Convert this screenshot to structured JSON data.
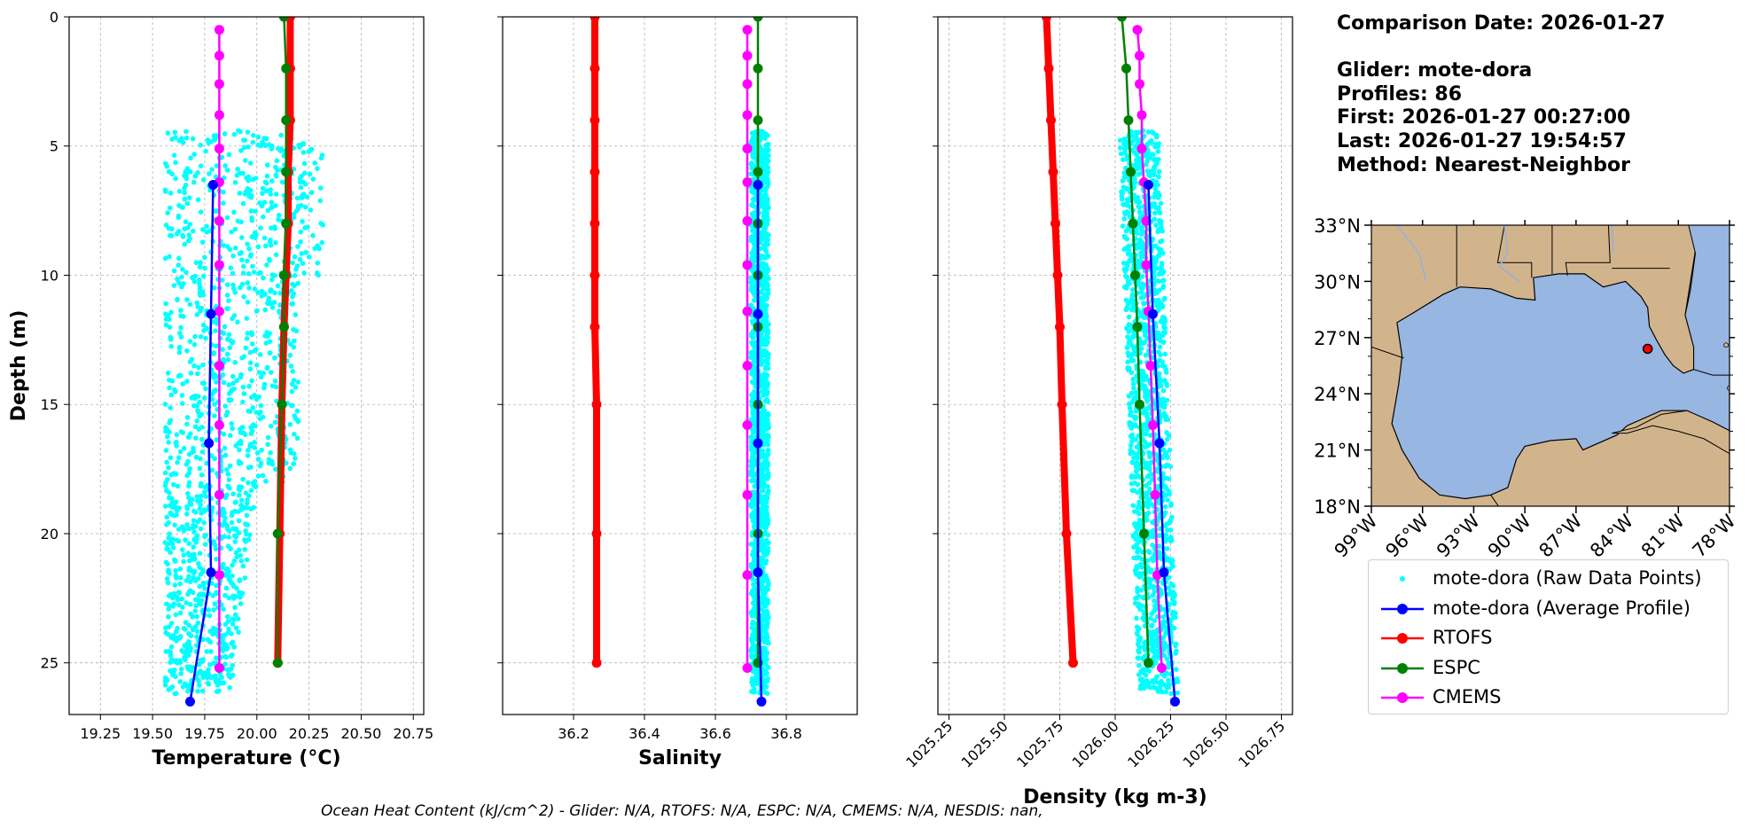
{
  "chart_data": [
    {
      "type": "scatter",
      "panel": "temperature",
      "xlabel": "Temperature (°C)",
      "ylabel": "Depth (m)",
      "xlim": [
        19.1,
        20.8
      ],
      "ylim": [
        27,
        0
      ],
      "xticks": [
        "19.25",
        "19.50",
        "19.75",
        "20.00",
        "20.25",
        "20.50",
        "20.75"
      ],
      "yticks": [
        "0",
        "5",
        "10",
        "15",
        "20",
        "25"
      ],
      "grid": true,
      "raw_points": {
        "name": "mote-dora (Raw Data Points)",
        "depth_range": [
          4.4,
          26.2
        ],
        "x_range": [
          19.56,
          20.32
        ]
      },
      "series": [
        {
          "name": "RTOFS",
          "depth": [
            0,
            2,
            4,
            6,
            8,
            10,
            12,
            15,
            20,
            25
          ],
          "values": [
            20.16,
            20.16,
            20.16,
            20.15,
            20.15,
            20.14,
            20.13,
            20.12,
            20.11,
            20.1
          ]
        },
        {
          "name": "ESPC",
          "depth": [
            0,
            2,
            4,
            6,
            8,
            10,
            12,
            15,
            20,
            25
          ],
          "values": [
            20.13,
            20.14,
            20.14,
            20.14,
            20.14,
            20.13,
            20.13,
            20.12,
            20.1,
            20.1
          ]
        },
        {
          "name": "CMEMS",
          "depth": [
            0.5,
            1.5,
            2.6,
            3.8,
            5.1,
            6.4,
            7.9,
            9.6,
            11.4,
            13.5,
            15.8,
            18.5,
            21.6,
            25.2
          ],
          "values": [
            19.82,
            19.82,
            19.82,
            19.82,
            19.82,
            19.82,
            19.82,
            19.82,
            19.82,
            19.82,
            19.82,
            19.82,
            19.82,
            19.82
          ]
        },
        {
          "name": "mote-dora (Average Profile)",
          "depth": [
            6.5,
            11.5,
            16.5,
            21.5,
            26.5
          ],
          "values": [
            19.79,
            19.78,
            19.77,
            19.78,
            19.68
          ]
        }
      ]
    },
    {
      "type": "scatter",
      "panel": "salinity",
      "xlabel": "Salinity",
      "xlim": [
        36.0,
        37.0
      ],
      "ylim": [
        27,
        0
      ],
      "xticks": [
        "36.2",
        "36.4",
        "36.6",
        "36.8"
      ],
      "grid": true,
      "raw_points": {
        "name": "mote-dora (Raw Data Points)",
        "depth_range": [
          4.4,
          26.2
        ],
        "x_range": [
          36.7,
          36.75
        ]
      },
      "series": [
        {
          "name": "RTOFS",
          "depth": [
            0,
            2,
            4,
            6,
            8,
            10,
            12,
            15,
            20,
            25
          ],
          "values": [
            36.26,
            36.26,
            36.26,
            36.26,
            36.26,
            36.26,
            36.26,
            36.265,
            36.265,
            36.265
          ]
        },
        {
          "name": "ESPC",
          "depth": [
            0,
            2,
            4,
            6,
            8,
            10,
            12,
            15,
            20,
            25
          ],
          "values": [
            36.72,
            36.72,
            36.72,
            36.72,
            36.72,
            36.72,
            36.72,
            36.72,
            36.72,
            36.72
          ]
        },
        {
          "name": "CMEMS",
          "depth": [
            0.5,
            1.5,
            2.6,
            3.8,
            5.1,
            6.4,
            7.9,
            9.6,
            11.4,
            13.5,
            15.8,
            18.5,
            21.6,
            25.2
          ],
          "values": [
            36.69,
            36.69,
            36.69,
            36.69,
            36.69,
            36.69,
            36.69,
            36.69,
            36.69,
            36.69,
            36.69,
            36.69,
            36.69,
            36.69
          ]
        },
        {
          "name": "mote-dora (Average Profile)",
          "depth": [
            6.5,
            11.5,
            16.5,
            21.5,
            26.5
          ],
          "values": [
            36.72,
            36.72,
            36.72,
            36.72,
            36.73
          ]
        }
      ]
    },
    {
      "type": "scatter",
      "panel": "density",
      "xlabel": "Density (kg m-3)",
      "xlim": [
        1025.2,
        1026.8
      ],
      "ylim": [
        27,
        0
      ],
      "xticks": [
        "1025.25",
        "1025.50",
        "1025.75",
        "1026.00",
        "1026.25",
        "1026.50",
        "1026.75"
      ],
      "grid": true,
      "raw_points": {
        "name": "mote-dora (Raw Data Points)",
        "depth_range": [
          4.4,
          26.2
        ],
        "x_range": [
          1026.0,
          1026.3
        ]
      },
      "series": [
        {
          "name": "RTOFS",
          "depth": [
            0,
            2,
            4,
            6,
            8,
            10,
            12,
            15,
            20,
            25
          ],
          "values": [
            1025.69,
            1025.7,
            1025.71,
            1025.72,
            1025.73,
            1025.74,
            1025.75,
            1025.76,
            1025.78,
            1025.81
          ]
        },
        {
          "name": "ESPC",
          "depth": [
            0,
            2,
            4,
            6,
            8,
            10,
            12,
            15,
            20,
            25
          ],
          "values": [
            1026.03,
            1026.05,
            1026.06,
            1026.07,
            1026.08,
            1026.09,
            1026.1,
            1026.11,
            1026.13,
            1026.15
          ]
        },
        {
          "name": "CMEMS",
          "depth": [
            0.5,
            1.5,
            2.6,
            3.8,
            5.1,
            6.4,
            7.9,
            9.6,
            11.4,
            13.5,
            15.8,
            18.5,
            21.6,
            25.2
          ],
          "values": [
            1026.1,
            1026.11,
            1026.11,
            1026.12,
            1026.12,
            1026.13,
            1026.14,
            1026.14,
            1026.15,
            1026.16,
            1026.17,
            1026.18,
            1026.19,
            1026.21
          ]
        },
        {
          "name": "mote-dora (Average Profile)",
          "depth": [
            6.5,
            11.5,
            16.5,
            21.5,
            26.5
          ],
          "values": [
            1026.15,
            1026.17,
            1026.2,
            1026.22,
            1026.27
          ]
        }
      ]
    }
  ],
  "colors": {
    "raw": "#00ffff",
    "average": "#0000ff",
    "rtofs": "#ff0000",
    "espc": "#008000",
    "cmems": "#ff00ff",
    "land": "#d2b48c",
    "ocean": "#97b6e1"
  },
  "info": {
    "comparison_date": "Comparison Date: 2026-01-27",
    "glider": "Glider: mote-dora",
    "profiles": "Profiles: 86",
    "first": "First: 2026-01-27 00:27:00",
    "last": "Last: 2026-01-27 19:54:57",
    "method": "Method: Nearest-Neighbor"
  },
  "map": {
    "lat_ticks": [
      "33°N",
      "30°N",
      "27°N",
      "24°N",
      "21°N",
      "18°N"
    ],
    "lon_ticks": [
      "99°W",
      "96°W",
      "93°W",
      "90°W",
      "87°W",
      "84°W",
      "81°W",
      "78°W"
    ],
    "lat_range": [
      18,
      33
    ],
    "lon_range": [
      -99,
      -78
    ],
    "glider_location": {
      "lat": 26.4,
      "lon": -82.8
    }
  },
  "legend": [
    {
      "label": "mote-dora (Raw Data Points)",
      "key": "raw"
    },
    {
      "label": "mote-dora (Average Profile)",
      "key": "average"
    },
    {
      "label": "RTOFS",
      "key": "rtofs"
    },
    {
      "label": "ESPC",
      "key": "espc"
    },
    {
      "label": "CMEMS",
      "key": "cmems"
    }
  ],
  "footer": "Ocean Heat Content (kJ/cm^2) - Glider: N/A,  RTOFS: N/A,  ESPC: N/A,  CMEMS: N/A,  NESDIS: nan,"
}
